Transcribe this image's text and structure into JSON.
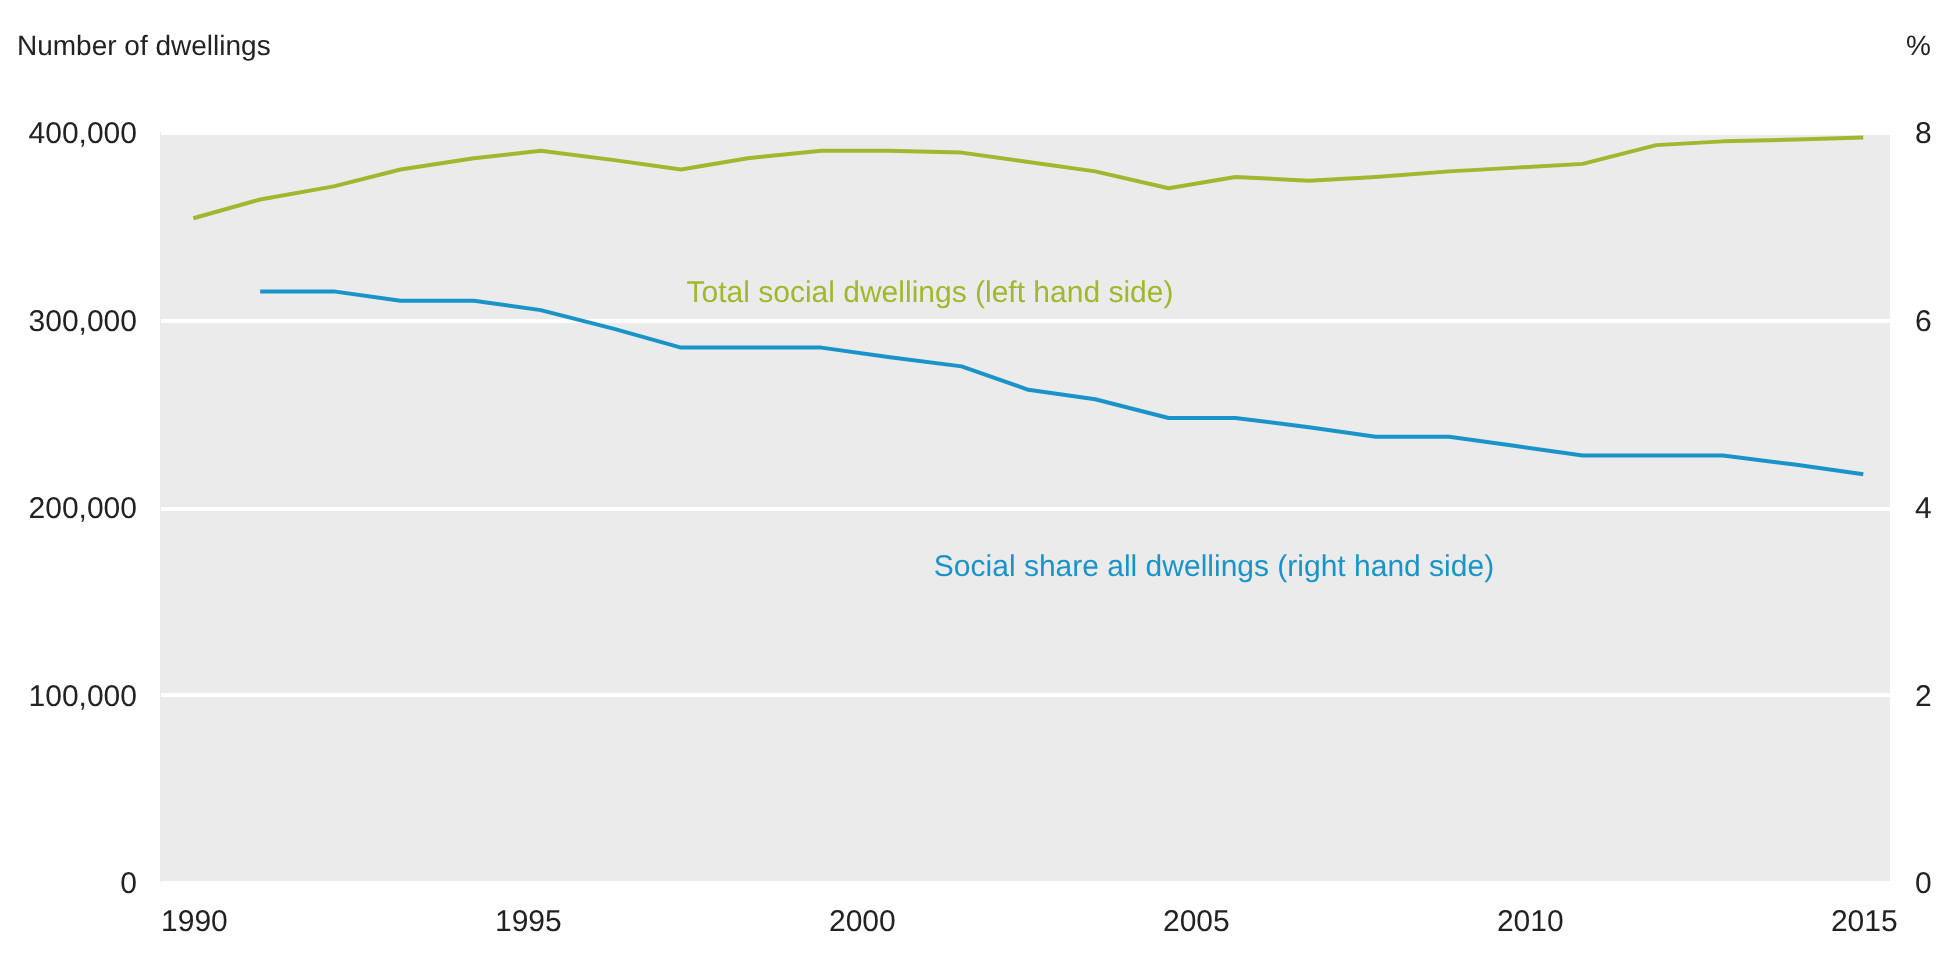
{
  "chart_data": {
    "type": "line",
    "ylabel": "Number of dwellings",
    "y2label": "%",
    "x": [
      1990,
      1991,
      1992.1,
      1993.1,
      1994.2,
      1995.2,
      1996.3,
      1997.3,
      1998.3,
      1999.4,
      2000.4,
      2001.5,
      2002.5,
      2003.5,
      2004.6,
      2005.6,
      2006.7,
      2007.7,
      2008.8,
      2009.8,
      2010.8,
      2011.9,
      2012.9,
      2014,
      2015
    ],
    "series": [
      {
        "name": "Total social dwellings (left hand side)",
        "color": "#9fb82e",
        "values": [
          354000,
          364000,
          371000,
          380000,
          386000,
          390000,
          385000,
          380000,
          386000,
          390000,
          390000,
          389000,
          384000,
          379000,
          370000,
          376000,
          374000,
          376000,
          379000,
          381000,
          383000,
          393000,
          395000,
          396000,
          397000
        ]
      },
      {
        "name": "Social share all dwellings (right hand side)",
        "color": "#1a94c8",
        "axis": "y2",
        "values": [
          null,
          6.3,
          6.3,
          6.2,
          6.2,
          6.1,
          5.9,
          5.7,
          5.7,
          5.7,
          5.6,
          5.5,
          5.25,
          5.15,
          4.95,
          4.95,
          4.85,
          4.75,
          4.75,
          4.65,
          4.55,
          4.55,
          4.55,
          4.45,
          4.35
        ]
      }
    ],
    "xlim": [
      1989.5,
      2015.4
    ],
    "xticks": [
      1990,
      1995,
      2000,
      2005,
      2010,
      2015
    ],
    "ylim": [
      0,
      400000
    ],
    "yticks": [
      0,
      {
        "value": 100000,
        "label": "100,000"
      },
      {
        "value": 200000,
        "label": "200,000"
      },
      {
        "value": 300000,
        "label": "300,000"
      },
      {
        "value": 400000,
        "label": "400,000"
      }
    ],
    "y2lim": [
      0,
      8
    ],
    "y2ticks": [
      0,
      2,
      4,
      6,
      8
    ],
    "grid": "y",
    "line_style": "solid",
    "marker": "none"
  }
}
